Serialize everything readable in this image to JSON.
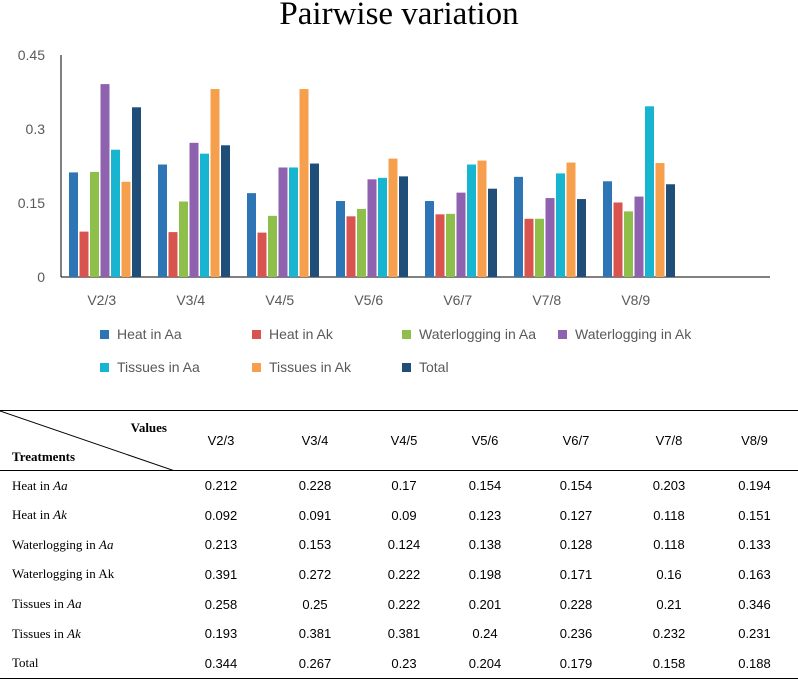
{
  "chart_data": {
    "type": "bar",
    "title": "Pairwise variation",
    "xlabel": "",
    "ylabel": "",
    "ylim": [
      0,
      0.45
    ],
    "yticks": [
      "0",
      "0.15",
      "0.3",
      "0.45"
    ],
    "ytick_values": [
      0,
      0.15,
      0.3,
      0.45
    ],
    "categories": [
      "V2/3",
      "V3/4",
      "V4/5",
      "V5/6",
      "V6/7",
      "V7/8",
      "V8/9"
    ],
    "legend_position": "bottom",
    "series": [
      {
        "name": "Heat in Aa",
        "color": "#2E75B6",
        "values": [
          0.212,
          0.228,
          0.17,
          0.154,
          0.154,
          0.203,
          0.194
        ]
      },
      {
        "name": "Heat in Ak",
        "color": "#D9534F",
        "values": [
          0.092,
          0.091,
          0.09,
          0.123,
          0.127,
          0.118,
          0.151
        ]
      },
      {
        "name": "Waterlogging in Aa",
        "color": "#8DBF4A",
        "values": [
          0.213,
          0.153,
          0.124,
          0.138,
          0.128,
          0.118,
          0.133
        ]
      },
      {
        "name": "Waterlogging in Ak",
        "color": "#8E62AE",
        "values": [
          0.391,
          0.272,
          0.222,
          0.198,
          0.171,
          0.16,
          0.163
        ]
      },
      {
        "name": "Tissues in Aa",
        "color": "#17B5CF",
        "values": [
          0.258,
          0.25,
          0.222,
          0.201,
          0.228,
          0.21,
          0.346
        ]
      },
      {
        "name": "Tissues in Ak",
        "color": "#F6A04D",
        "values": [
          0.193,
          0.381,
          0.381,
          0.24,
          0.236,
          0.232,
          0.231
        ]
      },
      {
        "name": "Total",
        "color": "#1F4E79",
        "values": [
          0.344,
          0.267,
          0.23,
          0.204,
          0.179,
          0.158,
          0.188
        ]
      }
    ]
  },
  "table": {
    "corner_values": "Values",
    "corner_treatments": "Treatments",
    "columns": [
      "V2/3",
      "V3/4",
      "V4/5",
      "V5/6",
      "V6/7",
      "V7/8",
      "V8/9"
    ],
    "rows": [
      {
        "label_pre": "Heat in ",
        "label_em": "Aa",
        "label_post": "",
        "values": [
          "0.212",
          "0.228",
          "0.17",
          "0.154",
          "0.154",
          "0.203",
          "0.194"
        ]
      },
      {
        "label_pre": "Heat in ",
        "label_em": "Ak",
        "label_post": "",
        "values": [
          "0.092",
          "0.091",
          "0.09",
          "0.123",
          "0.127",
          "0.118",
          "0.151"
        ]
      },
      {
        "label_pre": "Waterlogging in ",
        "label_em": "Aa",
        "label_post": "",
        "values": [
          "0.213",
          "0.153",
          "0.124",
          "0.138",
          "0.128",
          "0.118",
          "0.133"
        ]
      },
      {
        "label_pre": "Waterlogging in Ak",
        "label_em": "",
        "label_post": "",
        "values": [
          "0.391",
          "0.272",
          "0.222",
          "0.198",
          "0.171",
          "0.16",
          "0.163"
        ]
      },
      {
        "label_pre": "Tissues in ",
        "label_em": "Aa",
        "label_post": "",
        "values": [
          "0.258",
          "0.25",
          "0.222",
          "0.201",
          "0.228",
          "0.21",
          "0.346"
        ]
      },
      {
        "label_pre": "Tissues in ",
        "label_em": "Ak",
        "label_post": "",
        "values": [
          "0.193",
          "0.381",
          "0.381",
          "0.24",
          "0.236",
          "0.232",
          "0.231"
        ]
      },
      {
        "label_pre": "Total",
        "label_em": "",
        "label_post": "",
        "values": [
          "0.344",
          "0.267",
          "0.23",
          "0.204",
          "0.179",
          "0.158",
          "0.188"
        ]
      }
    ]
  }
}
